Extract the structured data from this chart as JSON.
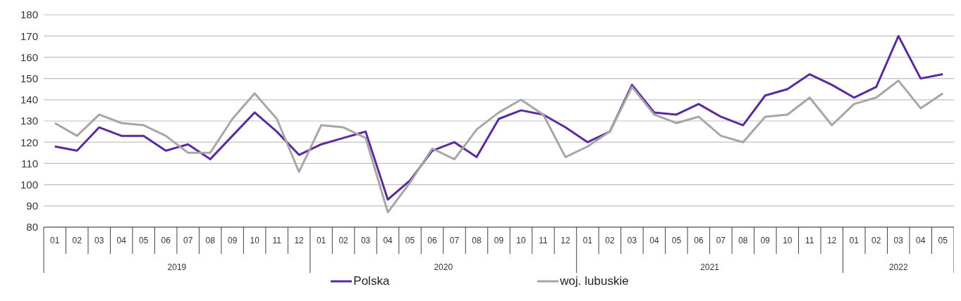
{
  "chart_data": {
    "type": "line",
    "categories": [
      "01",
      "02",
      "03",
      "04",
      "05",
      "06",
      "07",
      "08",
      "09",
      "10",
      "11",
      "12",
      "01",
      "02",
      "03",
      "04",
      "05",
      "06",
      "07",
      "08",
      "09",
      "10",
      "11",
      "12",
      "01",
      "02",
      "03",
      "04",
      "05",
      "06",
      "07",
      "08",
      "09",
      "10",
      "11",
      "12",
      "01",
      "02",
      "03",
      "04",
      "05"
    ],
    "annotations": [
      "2019",
      "2020",
      "2021",
      "2022"
    ],
    "series": [
      {
        "name": "Polska",
        "color": "#5b2a9e",
        "values": [
          118,
          116,
          127,
          123,
          123,
          116,
          119,
          112,
          123,
          134,
          125,
          114,
          119,
          122,
          125,
          93,
          102,
          116,
          120,
          113,
          131,
          135,
          133,
          127,
          120,
          125,
          147,
          134,
          133,
          138,
          132,
          128,
          142,
          145,
          152,
          147,
          141,
          146,
          170,
          150,
          152
        ]
      },
      {
        "name": "woj. lubuskie",
        "color": "#a6a6a6",
        "values": [
          129,
          123,
          133,
          129,
          128,
          123,
          115,
          115,
          131,
          143,
          131,
          106,
          128,
          127,
          122,
          87,
          101,
          117,
          112,
          126,
          134,
          140,
          133,
          113,
          118,
          125,
          146,
          133,
          129,
          132,
          123,
          120,
          132,
          133,
          141,
          128,
          138,
          141,
          149,
          136,
          143
        ]
      }
    ],
    "ylim": [
      80,
      180
    ],
    "yticks": [
      80,
      90,
      100,
      110,
      120,
      130,
      140,
      150,
      160,
      170,
      180
    ],
    "grid": "y",
    "legend": "bottom",
    "marker": "none",
    "line_style": "solid"
  }
}
